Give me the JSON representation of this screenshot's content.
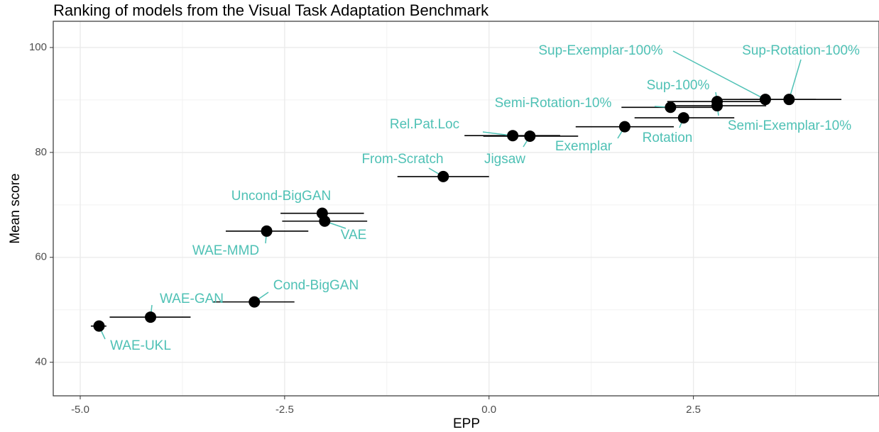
{
  "chart_data": {
    "type": "scatter",
    "title": "Ranking of models from the Visual Task Adaptation Benchmark",
    "x_label": "EPP",
    "y_label": "Mean score",
    "labels": [
      "WAE-UKL",
      "WAE-GAN",
      "Cond-BigGAN",
      "WAE-MMD",
      "Uncond-BigGAN",
      "VAE",
      "From-Scratch",
      "Rel.Pat.Loc",
      "Jigsaw",
      "Exemplar",
      "Rotation",
      "Semi-Rotation-10%",
      "Semi-Exemplar-10%",
      "Sup-100%",
      "Sup-Exemplar-100%",
      "Sup-Rotation-100%"
    ],
    "x": [
      -4.77,
      -4.14,
      -2.87,
      -2.72,
      -2.04,
      -2.01,
      -0.56,
      0.29,
      0.5,
      1.66,
      2.38,
      2.22,
      2.79,
      2.79,
      3.38,
      3.67
    ],
    "xmin": [
      -4.87,
      -4.64,
      -3.38,
      -3.22,
      -2.55,
      -2.53,
      -1.12,
      -0.3,
      -0.07,
      1.06,
      1.78,
      1.62,
      2.2,
      2.18,
      2.8,
      3.07
    ],
    "xmax": [
      -4.68,
      -3.65,
      -2.38,
      -2.21,
      -1.53,
      -1.49,
      0.0,
      0.87,
      1.09,
      2.26,
      3.0,
      2.82,
      3.39,
      3.4,
      4.0,
      4.31
    ],
    "values": [
      46.9,
      48.6,
      51.5,
      65.0,
      68.4,
      66.9,
      75.4,
      83.2,
      83.1,
      84.9,
      86.6,
      88.6,
      88.9,
      89.7,
      90.1,
      90.1
    ],
    "color": "#000000",
    "label_color": "#4fc1b5",
    "xlim": [
      -5.33,
      4.77
    ],
    "ylim": [
      33.6,
      105
    ],
    "xticks": [
      {
        "value": -5,
        "label": "-5.0"
      },
      -2.5,
      {
        "value": 0,
        "label": "0.0"
      },
      2.5
    ],
    "yticks": [
      40,
      60,
      80,
      100
    ],
    "grid": true
  }
}
